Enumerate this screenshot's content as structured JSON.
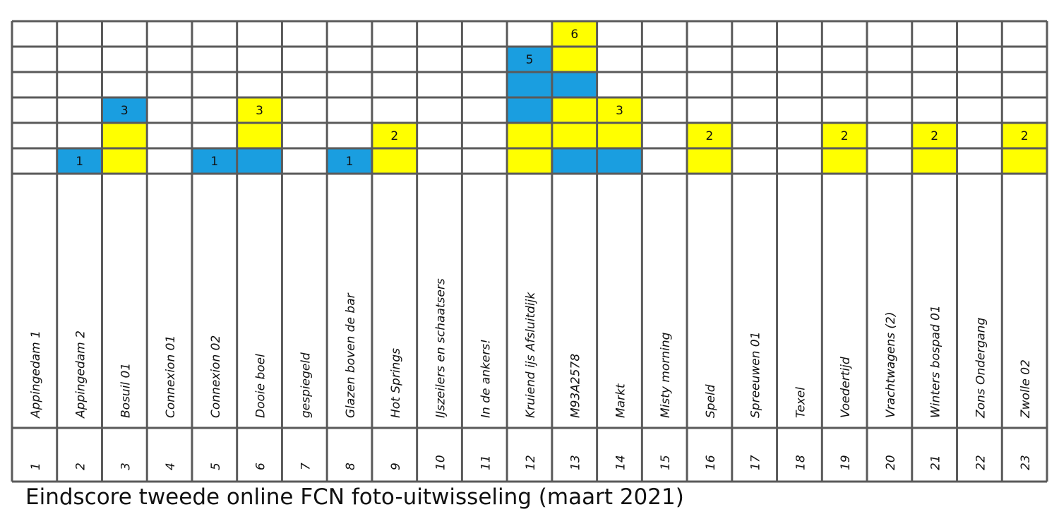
{
  "caption": "Eindscore tweede online FCN foto-uitwisseling (maart 2021)",
  "colors": {
    "blue": "#1a9ee0",
    "yellow": "#ffff00",
    "grid": "#5a5a5a",
    "background": "#ffffff"
  },
  "chart_data": {
    "type": "bar",
    "title": "Eindscore tweede online FCN foto-uitwisseling (maart 2021)",
    "xlabel": "",
    "ylabel": "",
    "ylim": [
      0,
      6
    ],
    "grid": true,
    "legend": "none",
    "numbers": [
      "1",
      "2",
      "3",
      "4",
      "5",
      "6",
      "7",
      "8",
      "9",
      "10",
      "11",
      "12",
      "13",
      "14",
      "15",
      "16",
      "17",
      "18",
      "19",
      "20",
      "21",
      "22",
      "23"
    ],
    "categories": [
      "Appingedam 1",
      "Appingedam 2",
      "Bosuil 01",
      "Connexion 01",
      "Connexion 02",
      "Dooie boel",
      "gespiegeld",
      "Glazen boven de bar",
      "Hot Springs",
      "IJszeilers en schaatsers",
      "In de ankers!",
      "Kruiend ijs Afsluitdijk",
      "M93A2578",
      "Markt",
      "Misty morning",
      "Speld",
      "Spreeuwen 01",
      "Texel",
      "Voedertijd",
      "Vrachtwagens (2)",
      "Winters bospad 01",
      "Zons Ondergang",
      "Zwolle 02"
    ],
    "values": [
      0,
      1,
      3,
      0,
      1,
      3,
      0,
      1,
      2,
      0,
      0,
      5,
      6,
      3,
      0,
      2,
      0,
      0,
      2,
      0,
      2,
      0,
      2
    ],
    "cell_colors": [
      [],
      [
        "blue"
      ],
      [
        "yellow",
        "yellow",
        "blue"
      ],
      [],
      [
        "blue"
      ],
      [
        "blue",
        "yellow",
        "yellow"
      ],
      [],
      [
        "blue"
      ],
      [
        "yellow",
        "yellow"
      ],
      [],
      [],
      [
        "yellow",
        "yellow",
        "blue",
        "blue",
        "blue"
      ],
      [
        "blue",
        "yellow",
        "yellow",
        "blue",
        "yellow",
        "yellow"
      ],
      [
        "blue",
        "yellow",
        "yellow"
      ],
      [],
      [
        "yellow",
        "yellow"
      ],
      [],
      [],
      [
        "yellow",
        "yellow"
      ],
      [],
      [
        "yellow",
        "yellow"
      ],
      [],
      [
        "yellow",
        "yellow"
      ]
    ]
  }
}
